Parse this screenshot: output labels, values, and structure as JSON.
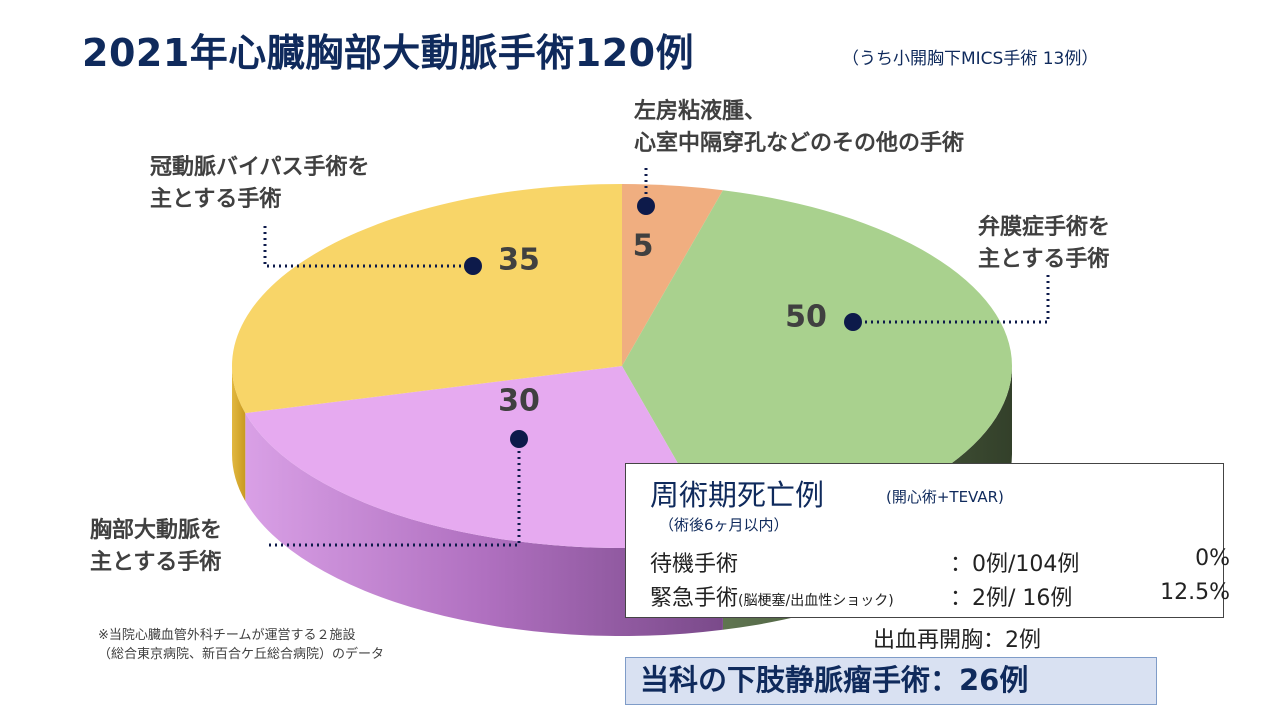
{
  "header": {
    "title": "2021年心臓胸部大動脈手術120例",
    "subtitle": "（うち小開胸下MICS手術  13例）"
  },
  "chart_data": {
    "type": "pie",
    "title": "2021年心臓胸部大動脈手術120例",
    "total": 120,
    "slices": [
      {
        "name": "左房粘液腫、心室中隔穿孔などのその他の手術",
        "value": 5,
        "color": "#f0ae80"
      },
      {
        "name": "弁膜症手術を主とする手術",
        "value": 50,
        "color": "#a9d18e"
      },
      {
        "name": "胸部大動脈を主とする手術",
        "value": 30,
        "color": "#e6aaf0"
      },
      {
        "name": "冠動脈バイパス手術を主とする手術",
        "value": 35,
        "color": "#f8d568"
      }
    ]
  },
  "labels": {
    "other": {
      "line1": "左房粘液腫、",
      "line2": "心室中隔穿孔などのその他の手術"
    },
    "valve": {
      "line1": "弁膜症手術を",
      "line2": "主とする手術"
    },
    "aorta": {
      "line1": "胸部大動脈を",
      "line2": "主とする手術"
    },
    "cabg": {
      "line1": "冠動脈バイパス手術を",
      "line2": "主とする手術"
    }
  },
  "footnote": {
    "line1": "※当院心臓血管外科チームが運営する２施設",
    "line2": "（総合東京病院、新百合ケ丘総合病院）のデータ"
  },
  "mortality": {
    "title": "周術期死亡例",
    "title_sub": "(開心術+TEVAR)",
    "period": "（術後6ヶ月以内）",
    "rows": [
      {
        "label": "待機手術",
        "label_sub": "",
        "count": "：0例/104例",
        "rate": "0%"
      },
      {
        "label": "緊急手術",
        "label_sub": "(脳梗塞/出血性ショック)",
        "count": "：2例/  16例",
        "rate": "12.5%"
      }
    ]
  },
  "bleeding": "出血再開胸：2例",
  "varicose": "当科の下肢静脈瘤手術：26例",
  "colors": {
    "title": "#0f2a5c",
    "marker": "#0d1a4a",
    "other_side": "#d08050",
    "valve_side": "#44553a",
    "aorta_side": "#b068c0"
  }
}
